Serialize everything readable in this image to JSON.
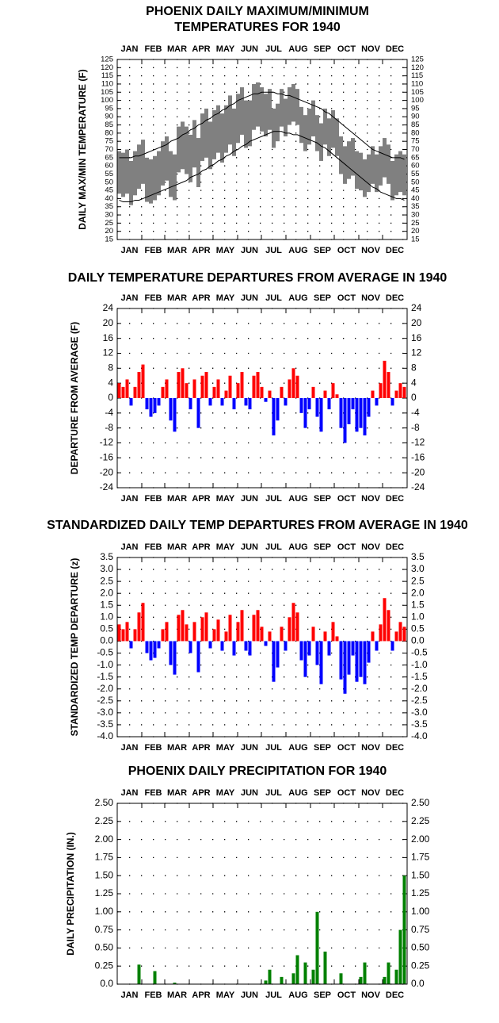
{
  "chart_data": [
    {
      "type": "band",
      "title": [
        "PHOENIX DAILY MAXIMUM/MINIMUM",
        "TEMPERATURES FOR 1940"
      ],
      "ylabel": "DAILY MAX/MIN TEMPERATURE (F)",
      "categories": [
        "JAN",
        "FEB",
        "MAR",
        "APR",
        "MAY",
        "JUN",
        "JUL",
        "AUG",
        "SEP",
        "OCT",
        "NOV",
        "DEC"
      ],
      "xlim": [
        1,
        367
      ],
      "xticks": [
        1,
        32,
        61,
        92,
        122,
        153,
        183,
        214,
        245,
        275,
        306,
        336,
        367
      ],
      "ylim": [
        15,
        125
      ],
      "yticks": [
        15,
        20,
        25,
        30,
        35,
        40,
        45,
        50,
        55,
        60,
        65,
        70,
        75,
        80,
        85,
        90,
        95,
        100,
        105,
        110,
        115,
        120,
        125
      ],
      "grid": true,
      "band_color": "#808080",
      "line_color": "#000000",
      "x": [
        1,
        6,
        11,
        16,
        21,
        26,
        31,
        36,
        41,
        46,
        51,
        56,
        61,
        66,
        71,
        76,
        81,
        86,
        91,
        96,
        101,
        106,
        111,
        116,
        121,
        126,
        131,
        136,
        141,
        146,
        151,
        156,
        161,
        166,
        171,
        176,
        181,
        186,
        191,
        196,
        201,
        206,
        211,
        216,
        221,
        226,
        231,
        236,
        241,
        246,
        251,
        256,
        261,
        266,
        271,
        276,
        281,
        286,
        291,
        296,
        301,
        306,
        311,
        316,
        321,
        326,
        331,
        336,
        341,
        346,
        351,
        356,
        361
      ],
      "high": [
        69,
        68,
        70,
        63,
        69,
        73,
        76,
        65,
        64,
        66,
        69,
        75,
        78,
        69,
        67,
        84,
        87,
        84,
        79,
        88,
        77,
        92,
        95,
        87,
        94,
        97,
        92,
        97,
        103,
        95,
        104,
        108,
        100,
        100,
        110,
        111,
        108,
        104,
        107,
        95,
        98,
        107,
        101,
        108,
        110,
        107,
        96,
        91,
        95,
        100,
        91,
        86,
        95,
        89,
        94,
        89,
        78,
        72,
        75,
        77,
        69,
        68,
        64,
        67,
        72,
        67,
        72,
        77,
        73,
        63,
        67,
        69,
        67
      ],
      "low": [
        43,
        41,
        43,
        36,
        42,
        46,
        49,
        38,
        37,
        39,
        42,
        48,
        51,
        41,
        39,
        56,
        58,
        55,
        50,
        59,
        47,
        63,
        65,
        58,
        64,
        68,
        62,
        68,
        73,
        66,
        74,
        79,
        71,
        72,
        82,
        84,
        81,
        78,
        82,
        71,
        75,
        84,
        78,
        85,
        87,
        85,
        74,
        69,
        73,
        78,
        69,
        63,
        73,
        66,
        71,
        66,
        55,
        49,
        52,
        54,
        46,
        45,
        41,
        44,
        49,
        44,
        48,
        53,
        49,
        39,
        42,
        44,
        42
      ],
      "normal_high": [
        65,
        65,
        65,
        65,
        66,
        66,
        67,
        68,
        69,
        70,
        71,
        72,
        73,
        75,
        76,
        77,
        79,
        80,
        82,
        83,
        85,
        86,
        88,
        89,
        91,
        92,
        94,
        95,
        97,
        98,
        100,
        101,
        102,
        103,
        104,
        104,
        105,
        105,
        105,
        105,
        104,
        104,
        103,
        103,
        102,
        101,
        100,
        99,
        98,
        97,
        96,
        95,
        93,
        92,
        90,
        88,
        86,
        84,
        82,
        80,
        78,
        76,
        74,
        72,
        70,
        69,
        68,
        67,
        66,
        65,
        65,
        65,
        64
      ],
      "normal_low": [
        39,
        38,
        38,
        38,
        39,
        39,
        40,
        41,
        42,
        43,
        44,
        45,
        46,
        47,
        48,
        49,
        50,
        51,
        53,
        54,
        55,
        57,
        58,
        60,
        61,
        63,
        64,
        66,
        67,
        69,
        70,
        72,
        73,
        75,
        76,
        77,
        78,
        79,
        80,
        81,
        81,
        81,
        80,
        80,
        79,
        79,
        78,
        77,
        76,
        75,
        74,
        72,
        71,
        69,
        67,
        65,
        63,
        61,
        59,
        57,
        55,
        53,
        51,
        49,
        47,
        46,
        44,
        43,
        42,
        41,
        40,
        40,
        39
      ]
    },
    {
      "type": "bar",
      "title": "DAILY TEMPERATURE DEPARTURES FROM AVERAGE IN 1940",
      "ylabel": "DEPARTURE FROM AVERAGE (F)",
      "categories": [
        "JAN",
        "FEB",
        "MAR",
        "APR",
        "MAY",
        "JUN",
        "JUL",
        "AUG",
        "SEP",
        "OCT",
        "NOV",
        "DEC"
      ],
      "xlim": [
        1,
        367
      ],
      "xticks": [
        1,
        32,
        61,
        92,
        122,
        153,
        183,
        214,
        245,
        275,
        306,
        336,
        367
      ],
      "ylim": [
        -24,
        24
      ],
      "yticks": [
        -24,
        -20,
        -16,
        -12,
        -8,
        -4,
        0,
        4,
        8,
        12,
        16,
        20,
        24
      ],
      "grid": true,
      "positive_color": "#ff0000",
      "negative_color": "#0000ff",
      "x": [
        1,
        6,
        11,
        16,
        21,
        26,
        31,
        36,
        41,
        46,
        51,
        56,
        61,
        66,
        71,
        76,
        81,
        86,
        91,
        96,
        101,
        106,
        111,
        116,
        121,
        126,
        131,
        136,
        141,
        146,
        151,
        156,
        161,
        166,
        171,
        176,
        181,
        186,
        191,
        196,
        201,
        206,
        211,
        216,
        221,
        226,
        231,
        236,
        241,
        246,
        251,
        256,
        261,
        266,
        271,
        276,
        281,
        286,
        291,
        296,
        301,
        306,
        311,
        316,
        321,
        326,
        331,
        336,
        341,
        346,
        351,
        356,
        361
      ],
      "values": [
        4,
        3,
        5,
        -2,
        3,
        7,
        9,
        -3,
        -5,
        -4,
        -2,
        3,
        5,
        -6,
        -9,
        7,
        8,
        4,
        -3,
        5,
        -8,
        6,
        7,
        -2,
        3,
        5,
        -2,
        2,
        6,
        -3,
        4,
        7,
        -2,
        -3,
        6,
        7,
        3,
        -1,
        2,
        -10,
        -6,
        3,
        -2,
        5,
        8,
        6,
        -4,
        -8,
        -3,
        3,
        -5,
        -9,
        2,
        -3,
        4,
        1,
        -8,
        -12,
        -7,
        -3,
        -9,
        -8,
        -10,
        -5,
        2,
        -2,
        4,
        10,
        7,
        -2,
        2,
        4,
        3
      ]
    },
    {
      "type": "bar",
      "title": "STANDARDIZED DAILY TEMP DEPARTURES FROM AVERAGE IN 1940",
      "ylabel": "STANDARDIZED TEMP DEPARTURE (z)",
      "categories": [
        "JAN",
        "FEB",
        "MAR",
        "APR",
        "MAY",
        "JUN",
        "JUL",
        "AUG",
        "SEP",
        "OCT",
        "NOV",
        "DEC"
      ],
      "xlim": [
        1,
        367
      ],
      "xticks": [
        1,
        32,
        61,
        92,
        122,
        153,
        183,
        214,
        245,
        275,
        306,
        336,
        367
      ],
      "ylim": [
        -4,
        3.5
      ],
      "yticks": [
        {
          "value": -4,
          "label": "-4.0"
        },
        -3.5,
        {
          "value": -3,
          "label": "-3.0"
        },
        -2.5,
        {
          "value": -2,
          "label": "-2.0"
        },
        -1.5,
        {
          "value": -1,
          "label": "-1.0"
        },
        -0.5,
        {
          "value": 0,
          "label": "0.0"
        },
        0.5,
        {
          "value": 1,
          "label": "1.0"
        },
        1.5,
        {
          "value": 2,
          "label": "2.0"
        },
        2.5,
        {
          "value": 3,
          "label": "3.0"
        },
        3.5
      ],
      "grid": true,
      "positive_color": "#ff0000",
      "negative_color": "#0000ff",
      "x": [
        1,
        6,
        11,
        16,
        21,
        26,
        31,
        36,
        41,
        46,
        51,
        56,
        61,
        66,
        71,
        76,
        81,
        86,
        91,
        96,
        101,
        106,
        111,
        116,
        121,
        126,
        131,
        136,
        141,
        146,
        151,
        156,
        161,
        166,
        171,
        176,
        181,
        186,
        191,
        196,
        201,
        206,
        211,
        216,
        221,
        226,
        231,
        236,
        241,
        246,
        251,
        256,
        261,
        266,
        271,
        276,
        281,
        286,
        291,
        296,
        301,
        306,
        311,
        316,
        321,
        326,
        331,
        336,
        341,
        346,
        351,
        356,
        361
      ],
      "values": [
        0.7,
        0.5,
        0.8,
        -0.3,
        0.5,
        1.2,
        1.6,
        -0.5,
        -0.8,
        -0.7,
        -0.3,
        0.5,
        0.8,
        -1.0,
        -1.4,
        1.1,
        1.3,
        0.7,
        -0.5,
        0.8,
        -1.3,
        1.0,
        1.2,
        -0.3,
        0.5,
        0.9,
        -0.4,
        0.4,
        1.1,
        -0.6,
        0.8,
        1.3,
        -0.4,
        -0.6,
        1.1,
        1.3,
        0.6,
        -0.2,
        0.4,
        -1.7,
        -1.1,
        0.6,
        -0.4,
        1.0,
        1.6,
        1.2,
        -0.8,
        -1.5,
        -0.6,
        0.6,
        -1.0,
        -1.8,
        0.4,
        -0.6,
        0.8,
        0.2,
        -1.6,
        -2.2,
        -1.4,
        -0.6,
        -1.7,
        -1.5,
        -1.8,
        -0.9,
        0.4,
        -0.4,
        0.7,
        1.8,
        1.3,
        -0.4,
        0.4,
        0.8,
        0.6
      ]
    },
    {
      "type": "bar",
      "title": "PHOENIX DAILY PRECIPITATION FOR 1940",
      "ylabel": "DAILY PRECIPITATION (IN.)",
      "categories": [
        "JAN",
        "FEB",
        "MAR",
        "APR",
        "MAY",
        "JUN",
        "JUL",
        "AUG",
        "SEP",
        "OCT",
        "NOV",
        "DEC"
      ],
      "xlim": [
        1,
        367
      ],
      "xticks": [
        1,
        32,
        61,
        92,
        122,
        153,
        183,
        214,
        245,
        275,
        306,
        336,
        367
      ],
      "ylim": [
        0,
        2.5
      ],
      "yticks": [
        {
          "value": 0,
          "label": "0.0"
        },
        0.25,
        {
          "value": 0.5,
          "label": "0.50"
        },
        0.75,
        {
          "value": 1,
          "label": "1.00"
        },
        1.25,
        {
          "value": 1.5,
          "label": "1.50"
        },
        1.75,
        {
          "value": 2,
          "label": "2.00"
        },
        2.25,
        {
          "value": 2.5,
          "label": "2.50"
        }
      ],
      "grid": true,
      "color": "#008000",
      "x": [
        1,
        6,
        11,
        16,
        21,
        26,
        31,
        36,
        41,
        46,
        51,
        56,
        61,
        66,
        71,
        76,
        81,
        86,
        91,
        96,
        101,
        106,
        111,
        116,
        121,
        126,
        131,
        136,
        141,
        146,
        151,
        156,
        161,
        166,
        171,
        176,
        181,
        186,
        191,
        196,
        201,
        206,
        211,
        216,
        221,
        226,
        231,
        236,
        241,
        246,
        251,
        256,
        261,
        266,
        271,
        276,
        281,
        286,
        291,
        296,
        301,
        306,
        311,
        316,
        321,
        326,
        331,
        336,
        341,
        346,
        351,
        356,
        361
      ],
      "values": [
        0,
        0,
        0,
        0,
        0,
        0.27,
        0,
        0,
        0,
        0.18,
        0,
        0,
        0,
        0,
        0.02,
        0,
        0,
        0,
        0,
        0,
        0,
        0,
        0,
        0,
        0,
        0,
        0,
        0,
        0,
        0,
        0,
        0,
        0,
        0,
        0,
        0,
        0,
        0.05,
        0.2,
        0,
        0,
        0.1,
        0,
        0,
        0.15,
        0.4,
        0,
        0.3,
        0,
        0.2,
        1.0,
        0,
        0.45,
        0,
        0,
        0,
        0.15,
        0,
        0,
        0,
        0,
        0.1,
        0.3,
        0,
        0,
        0,
        0,
        0.1,
        0.3,
        0,
        0.2,
        0.75,
        1.5
      ]
    }
  ]
}
